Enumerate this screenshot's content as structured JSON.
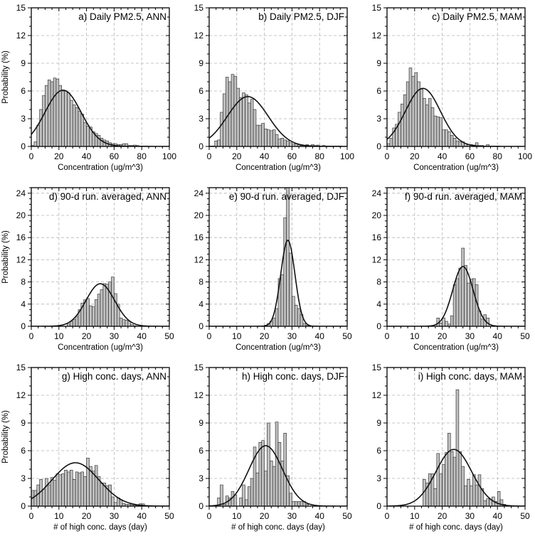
{
  "chart_data": [
    {
      "type": "bar",
      "title": "a) Daily PM2.5, ANN",
      "xlabel": "Concentration (ug/m^3)",
      "ylabel": "Probability (%)",
      "xlim": [
        0,
        100
      ],
      "ylim": [
        0,
        15
      ],
      "xticks": [
        0,
        20,
        40,
        60,
        80,
        100
      ],
      "yticks": [
        0,
        3,
        6,
        9,
        12,
        15
      ],
      "grid": true,
      "bin_width": 2,
      "bin_start": 0,
      "values": [
        0.1,
        0.5,
        2.3,
        4.0,
        5.5,
        6.6,
        7.2,
        7.0,
        7.4,
        7.3,
        6.6,
        6.0,
        6.0,
        5.8,
        5.0,
        4.5,
        4.2,
        3.8,
        3.5,
        2.6,
        2.2,
        2.1,
        1.6,
        1.4,
        1.2,
        0.9,
        0.7,
        0.6,
        0.4,
        0.3,
        0.3,
        0.2,
        0.2,
        0.3,
        0.3,
        0.1,
        0.1,
        0.15,
        0.1,
        0.05,
        0.05,
        0.05,
        0.03,
        0.03,
        0.02
      ],
      "fit": {
        "type": "normal",
        "mean": 23,
        "sd": 13.1
      }
    },
    {
      "type": "bar",
      "title": "b) Daily PM2.5, DJF",
      "xlabel": "Concentration (ug/m^3)",
      "ylabel": "",
      "xlim": [
        0,
        100
      ],
      "ylim": [
        0,
        15
      ],
      "xticks": [
        0,
        20,
        40,
        60,
        80,
        100
      ],
      "yticks": [
        0,
        3,
        6,
        9,
        12,
        15
      ],
      "grid": true,
      "bin_width": 2,
      "bin_start": 0,
      "values": [
        0.05,
        0.05,
        0.6,
        0.7,
        3.7,
        5.7,
        7.5,
        7.0,
        7.8,
        7.6,
        6.3,
        5.3,
        5.8,
        5.6,
        4.7,
        5.1,
        4.0,
        2.3,
        2.3,
        2.5,
        1.9,
        1.8,
        1.7,
        1.8,
        1.3,
        0.8,
        0.9,
        0.7,
        0.6,
        0.4,
        0.25,
        0.3,
        0.2,
        0.1,
        0.1,
        0.2,
        0.1,
        0.2,
        0.1,
        0.15,
        0.05,
        0.1,
        0.05,
        0.05,
        0.05,
        0.05,
        0.05,
        0.05
      ],
      "fit": {
        "type": "normal",
        "mean": 28,
        "sd": 14.8
      }
    },
    {
      "type": "bar",
      "title": "c) Daily PM2.5, MAM",
      "xlabel": "Concentration (ug/m^3)",
      "ylabel": "",
      "xlim": [
        0,
        100
      ],
      "ylim": [
        0,
        15
      ],
      "xticks": [
        0,
        20,
        40,
        60,
        80,
        100
      ],
      "yticks": [
        0,
        3,
        6,
        9,
        12,
        15
      ],
      "grid": true,
      "bin_width": 2,
      "bin_start": 0,
      "values": [
        0.3,
        0.9,
        2.0,
        2.4,
        3.7,
        4.6,
        5.6,
        7.0,
        8.5,
        7.6,
        8.0,
        7.0,
        6.2,
        5.2,
        4.5,
        5.2,
        4.2,
        3.3,
        3.2,
        3.1,
        1.8,
        1.8,
        1.6,
        1.2,
        0.9,
        0.6,
        0.5,
        0.5,
        0.3,
        0.2,
        0.2,
        0.15,
        0.4,
        0.1,
        0.1,
        0.05,
        0.2,
        0.05,
        0.05,
        0.05,
        0.05
      ],
      "fit": {
        "type": "normal",
        "mean": 26,
        "sd": 12.7
      }
    },
    {
      "type": "bar",
      "title": "d) 90-d run. averaged, ANN",
      "xlabel": "Concentration (ug/m^3)",
      "ylabel": "Probability (%)",
      "xlim": [
        0,
        50
      ],
      "ylim": [
        0,
        25
      ],
      "xticks": [
        0,
        10,
        20,
        30,
        40,
        50
      ],
      "yticks": [
        0,
        4,
        8,
        12,
        16,
        20,
        24
      ],
      "grid": true,
      "bin_width": 1,
      "bin_start": 13,
      "values": [
        0.4,
        0.9,
        1.2,
        1.8,
        3.0,
        4.2,
        4.8,
        5.0,
        3.7,
        3.5,
        4.8,
        5.8,
        6.6,
        7.7,
        7.6,
        8.0,
        8.9,
        5.9,
        4.0,
        1.5,
        1.2,
        1.1,
        0.9,
        0.3,
        0.1
      ],
      "fit": {
        "type": "normal",
        "mean": 25,
        "sd": 5.2
      }
    },
    {
      "type": "bar",
      "title": "e) 90-d run. averaged, DJF",
      "xlabel": "Concentration (ug/m^3)",
      "ylabel": "",
      "xlim": [
        0,
        50
      ],
      "ylim": [
        0,
        25
      ],
      "xticks": [
        0,
        10,
        20,
        30,
        40,
        50
      ],
      "yticks": [
        0,
        4,
        8,
        12,
        16,
        20,
        24
      ],
      "grid": true,
      "bin_width": 1,
      "bin_start": 20,
      "values": [
        0.2,
        0.5,
        0.9,
        1.5,
        3.2,
        8.6,
        9.3,
        19.6,
        25,
        13.2,
        5.4,
        3.8,
        3.2,
        2.1,
        0.5,
        0.2
      ],
      "fit": {
        "type": "normal",
        "mean": 28.5,
        "sd": 2.57
      }
    },
    {
      "type": "bar",
      "title": "f) 90-d run. averaged, MAM",
      "xlabel": "Concentration (ug/m^3)",
      "ylabel": "",
      "xlim": [
        0,
        50
      ],
      "ylim": [
        0,
        25
      ],
      "xticks": [
        0,
        10,
        20,
        30,
        40,
        50
      ],
      "yticks": [
        0,
        4,
        8,
        12,
        16,
        20,
        24
      ],
      "grid": true,
      "bin_width": 1,
      "bin_start": 18,
      "values": [
        1.5,
        0.6,
        1.5,
        0.9,
        0.4,
        1.9,
        7.5,
        8.6,
        10.5,
        14.1,
        11.0,
        7.8,
        8.5,
        8.6,
        7.5,
        2.8,
        1.3,
        2.1,
        1.5
      ],
      "fit": {
        "type": "normal",
        "mean": 27.5,
        "sd": 3.7
      }
    },
    {
      "type": "bar",
      "title": "g) High conc. days, ANN",
      "xlabel": "# of high conc. days (day)",
      "ylabel": "Probability (%)",
      "xlim": [
        0,
        50
      ],
      "ylim": [
        0,
        15
      ],
      "xticks": [
        0,
        10,
        20,
        30,
        40,
        50
      ],
      "yticks": [
        0,
        3,
        6,
        9,
        12,
        15
      ],
      "grid": true,
      "bin_width": 1,
      "bin_start": 0,
      "values": [
        1.7,
        1.7,
        2.3,
        2.9,
        1.8,
        3.0,
        2.3,
        3.1,
        2.8,
        3.5,
        3.4,
        3.5,
        3.9,
        3.7,
        3.9,
        2.9,
        3.7,
        3.6,
        3.7,
        3.2,
        5.2,
        4.3,
        3.8,
        4.4,
        3.2,
        2.5,
        2.5,
        2.2,
        2.3,
        1.0,
        0.4,
        0.9,
        0.7,
        0.3,
        0.2,
        0.2,
        0.15,
        0.1,
        0.05,
        0.25,
        0.25,
        0.05
      ],
      "fit": {
        "type": "normal",
        "mean": 16,
        "sd": 8.5
      }
    },
    {
      "type": "bar",
      "title": "h) High conc. days, DJF",
      "xlabel": "# of high conc. days (day)",
      "ylabel": "",
      "xlim": [
        0,
        50
      ],
      "ylim": [
        0,
        15
      ],
      "xticks": [
        0,
        10,
        20,
        30,
        40,
        50
      ],
      "yticks": [
        0,
        3,
        6,
        9,
        12,
        15
      ],
      "grid": true,
      "bin_width": 1,
      "bin_start": 3,
      "values": [
        0.9,
        2.3,
        0.2,
        1.1,
        0.9,
        1.6,
        1.2,
        0,
        0.9,
        2.3,
        0.7,
        2.1,
        3.0,
        6.4,
        3.6,
        6.9,
        7.1,
        3.8,
        9.0,
        4.9,
        4.3,
        9.1,
        6.9,
        4.9,
        7.9,
        3.3,
        1.4,
        0.5,
        0.5,
        0.5,
        0.5,
        0.5,
        0.2
      ],
      "fit": {
        "type": "normal",
        "mean": 20.5,
        "sd": 6.1
      }
    },
    {
      "type": "bar",
      "title": "i) High conc. days, MAM",
      "xlabel": "# of high conc. days (day)",
      "ylabel": "",
      "xlim": [
        0,
        50
      ],
      "ylim": [
        0,
        15
      ],
      "xticks": [
        0,
        10,
        20,
        30,
        40,
        50
      ],
      "yticks": [
        0,
        3,
        6,
        9,
        12,
        15
      ],
      "grid": true,
      "bin_width": 1,
      "bin_start": 13,
      "values": [
        2.9,
        2.5,
        3.5,
        3.5,
        1.9,
        5.7,
        3.5,
        4.5,
        5.8,
        7.9,
        5.9,
        5.3,
        12.6,
        5.9,
        4.3,
        2.2,
        2.9,
        2.2,
        3.4,
        2.3,
        3.4,
        1.9,
        0.6,
        0.8,
        0.7,
        1.0,
        0.5,
        1.6,
        0.7,
        0.2
      ],
      "fit": {
        "type": "normal",
        "mean": 24.2,
        "sd": 6.5
      }
    }
  ],
  "colors": {
    "bar_fill": "#c0c0c0",
    "bar_edge": "#222222",
    "fit_line": "#111111",
    "grid": "#b5b5b5"
  }
}
